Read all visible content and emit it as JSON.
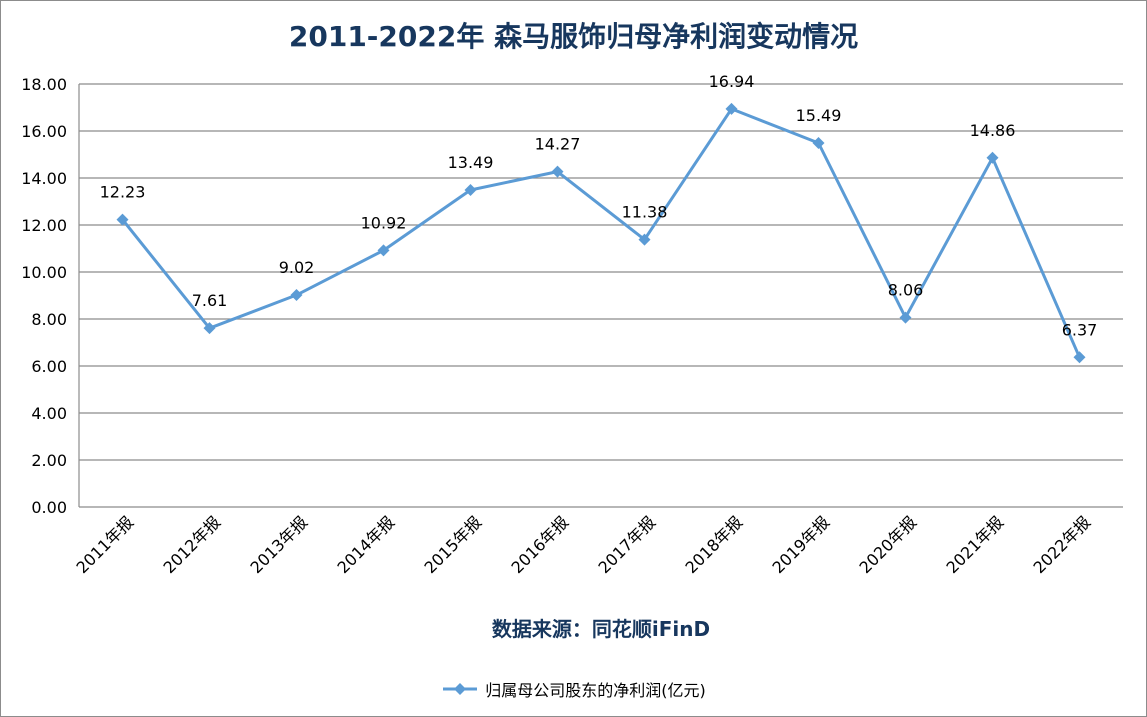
{
  "chart_data": {
    "type": "line",
    "title": "2011-2022年 森马服饰归母净利润变动情况",
    "source_note": "数据来源：同花顺iFinD",
    "categories": [
      "2011年报",
      "2012年报",
      "2013年报",
      "2014年报",
      "2015年报",
      "2016年报",
      "2017年报",
      "2018年报",
      "2019年报",
      "2020年报",
      "2021年报",
      "2022年报"
    ],
    "series": [
      {
        "name": "归属母公司股东的净利润(亿元)",
        "values": [
          12.23,
          7.61,
          9.02,
          10.92,
          13.49,
          14.27,
          11.38,
          16.94,
          15.49,
          8.06,
          14.86,
          6.37
        ],
        "labels": [
          "12.23",
          "7.61",
          "9.02",
          "10.92",
          "13.49",
          "14.27",
          "11.38",
          "16.94",
          "15.49",
          "8.06",
          "14.86",
          "6.37"
        ],
        "color": "#5b9bd5"
      }
    ],
    "ylim": [
      0,
      18
    ],
    "yticks": [
      "0.00",
      "2.00",
      "4.00",
      "6.00",
      "8.00",
      "10.00",
      "12.00",
      "14.00",
      "16.00",
      "18.00"
    ],
    "grid": true,
    "legend_position": "bottom"
  },
  "colors": {
    "title": "#17375e",
    "gridline": "#8c8c8c",
    "axis": "#8c8c8c"
  }
}
